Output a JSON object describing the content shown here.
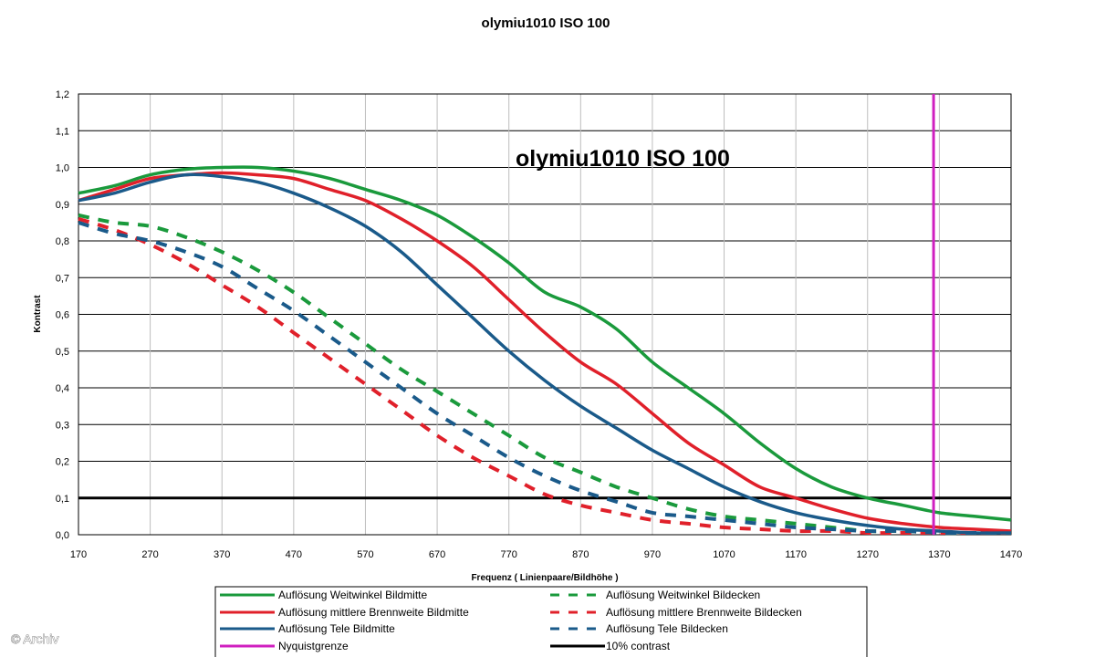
{
  "watermark": "© Archiv",
  "chart_data": {
    "type": "line",
    "title": "olymiu1010 ISO 100",
    "inner_title": "olymiu1010 ISO 100",
    "xlabel": "Frequenz ( Linienpaare/Bildhöhe )",
    "ylabel": "Kontrast",
    "xlim": [
      170,
      1470
    ],
    "ylim": [
      0,
      1.2
    ],
    "x_ticks": [
      "170",
      "270",
      "370",
      "470",
      "570",
      "670",
      "770",
      "870",
      "970",
      "1070",
      "1170",
      "1270",
      "1370",
      "1470"
    ],
    "y_ticks": [
      "0,0",
      "0,1",
      "0,2",
      "0,3",
      "0,4",
      "0,5",
      "0,6",
      "0,7",
      "0,8",
      "0,9",
      "1,0",
      "1,1",
      "1,2"
    ],
    "grid": true,
    "legend_position": "bottom",
    "x": [
      170,
      220,
      270,
      320,
      370,
      420,
      470,
      520,
      570,
      620,
      670,
      720,
      770,
      820,
      870,
      920,
      970,
      1020,
      1070,
      1120,
      1170,
      1220,
      1270,
      1320,
      1370,
      1420,
      1470
    ],
    "series": [
      {
        "name": "Auflösung Weitwinkel Bildmitte",
        "color": "#1a9a3c",
        "dash": false,
        "values": [
          0.93,
          0.95,
          0.98,
          0.995,
          1.0,
          1.0,
          0.99,
          0.97,
          0.94,
          0.91,
          0.87,
          0.81,
          0.74,
          0.66,
          0.62,
          0.56,
          0.47,
          0.4,
          0.33,
          0.25,
          0.18,
          0.13,
          0.1,
          0.08,
          0.06,
          0.05,
          0.04
        ]
      },
      {
        "name": "Auflösung mittlere Brennweite Bildmitte",
        "color": "#e0202a",
        "dash": false,
        "values": [
          0.91,
          0.94,
          0.97,
          0.98,
          0.985,
          0.98,
          0.97,
          0.94,
          0.91,
          0.86,
          0.8,
          0.73,
          0.64,
          0.55,
          0.47,
          0.41,
          0.33,
          0.25,
          0.19,
          0.13,
          0.1,
          0.07,
          0.045,
          0.03,
          0.02,
          0.015,
          0.01
        ]
      },
      {
        "name": "Auflösung Tele Bildmitte",
        "color": "#1a5a8a",
        "dash": false,
        "values": [
          0.91,
          0.93,
          0.96,
          0.98,
          0.975,
          0.96,
          0.93,
          0.89,
          0.84,
          0.77,
          0.68,
          0.59,
          0.5,
          0.42,
          0.35,
          0.29,
          0.23,
          0.18,
          0.13,
          0.09,
          0.06,
          0.04,
          0.025,
          0.015,
          0.01,
          0.005,
          0.005
        ]
      },
      {
        "name": "Auflösung Weitwinkel Bildecken",
        "color": "#1a9a3c",
        "dash": true,
        "values": [
          0.87,
          0.85,
          0.84,
          0.81,
          0.77,
          0.72,
          0.66,
          0.59,
          0.52,
          0.45,
          0.39,
          0.33,
          0.27,
          0.21,
          0.17,
          0.13,
          0.1,
          0.07,
          0.05,
          0.04,
          0.03,
          0.02,
          0.01,
          0.01,
          0.005,
          0.005,
          0.005
        ]
      },
      {
        "name": "Auflösung mittlere Brennweite Bildecken",
        "color": "#e0202a",
        "dash": true,
        "values": [
          0.86,
          0.83,
          0.79,
          0.74,
          0.68,
          0.62,
          0.55,
          0.48,
          0.41,
          0.34,
          0.27,
          0.21,
          0.16,
          0.11,
          0.08,
          0.06,
          0.04,
          0.03,
          0.02,
          0.015,
          0.01,
          0.01,
          0.005,
          0.005,
          0.005,
          0.005,
          0.005
        ]
      },
      {
        "name": "Auflösung Tele Bildecken",
        "color": "#1a5a8a",
        "dash": true,
        "values": [
          0.85,
          0.82,
          0.8,
          0.77,
          0.73,
          0.67,
          0.61,
          0.54,
          0.47,
          0.4,
          0.33,
          0.27,
          0.21,
          0.16,
          0.12,
          0.09,
          0.06,
          0.05,
          0.04,
          0.03,
          0.02,
          0.015,
          0.01,
          0.01,
          0.005,
          0.005,
          0.005
        ]
      }
    ],
    "reference_lines": [
      {
        "name": "Nyquistgrenze",
        "orientation": "vertical",
        "x": 1362,
        "color": "#d020c0"
      },
      {
        "name": "10% contrast",
        "orientation": "horizontal",
        "y": 0.1,
        "color": "#000000"
      }
    ]
  }
}
